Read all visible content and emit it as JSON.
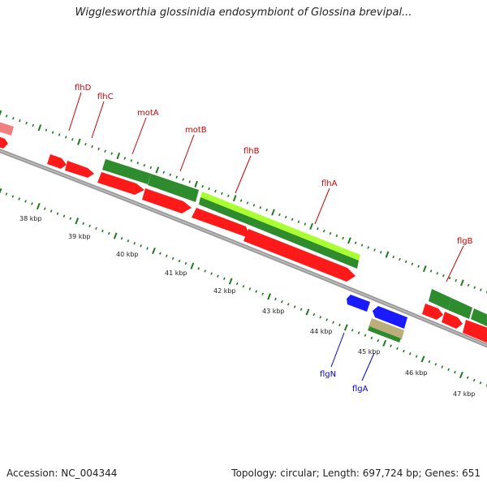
{
  "title": "Wigglesworthia glossinidia endosymbiont of Glossina brevipal...",
  "footer": {
    "accession": "Accession: NC_004344",
    "summary": "Topology: circular; Length: 697,724 bp; Genes: 651"
  },
  "colors": {
    "backbone": "#808080",
    "gene_red": "#ff1a1a",
    "gene_green": "#2e8b2e",
    "gene_lightgreen": "#aaff33",
    "gene_blue": "#1a1aff",
    "gene_tan": "#bcae7a",
    "label_red": "#cc0000",
    "label_blue": "#0000cc"
  },
  "kbp_labels": [
    "38 kbp",
    "39 kbp",
    "40 kbp",
    "41 kbp",
    "42 kbp",
    "43 kbp",
    "44 kbp",
    "45 kbp",
    "46 kbp",
    "47 kbp"
  ],
  "gene_labels": [
    {
      "name": "flhD",
      "strand": "forward"
    },
    {
      "name": "flhC",
      "strand": "forward"
    },
    {
      "name": "motA",
      "strand": "forward"
    },
    {
      "name": "motB",
      "strand": "forward"
    },
    {
      "name": "flhB",
      "strand": "forward"
    },
    {
      "name": "flhA",
      "strand": "forward"
    },
    {
      "name": "flgB",
      "strand": "forward"
    },
    {
      "name": "flgN",
      "strand": "reverse"
    },
    {
      "name": "flgA",
      "strand": "reverse"
    }
  ]
}
